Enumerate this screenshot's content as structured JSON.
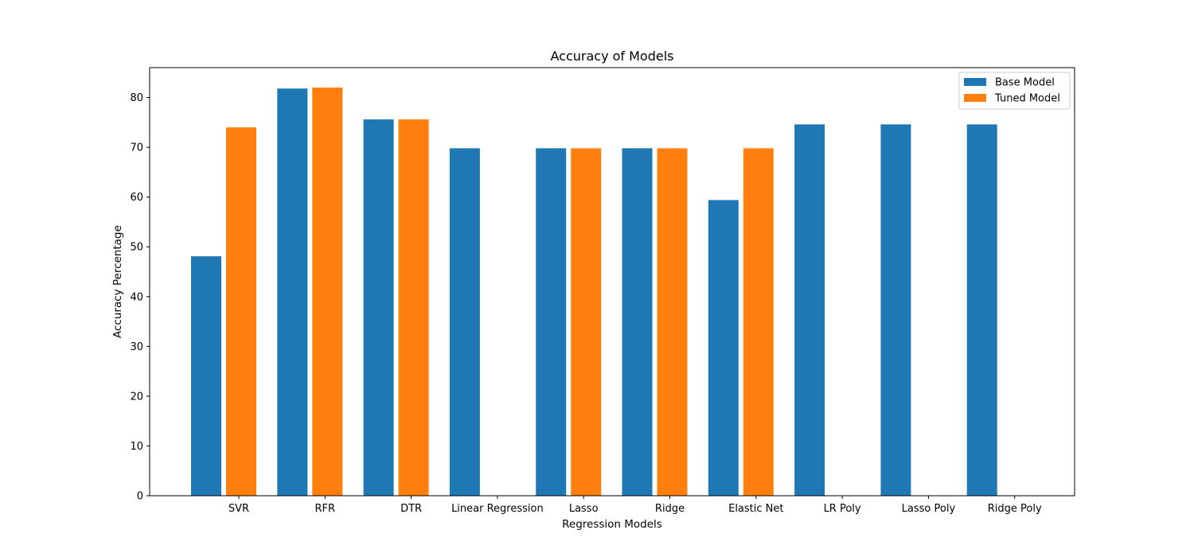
{
  "chart_data": {
    "type": "bar",
    "title": "Accuracy of Models",
    "xlabel": "Regression Models",
    "ylabel": "Accuracy Percentage",
    "ylim": [
      0,
      86
    ],
    "yticks": [
      0,
      10,
      20,
      30,
      40,
      50,
      60,
      70,
      80
    ],
    "grid": false,
    "legend_position": "top-right",
    "categories": [
      "SVR",
      "RFR",
      "DTR",
      "Linear Regression",
      "Lasso",
      "Ridge",
      "Elastic Net",
      "LR Poly",
      "Lasso Poly",
      "Ridge Poly"
    ],
    "series": [
      {
        "name": "Base Model",
        "color": "#1f77b4",
        "values": [
          48.1,
          81.8,
          75.6,
          69.8,
          69.8,
          69.8,
          59.4,
          74.6,
          74.6,
          74.6
        ]
      },
      {
        "name": "Tuned Model",
        "color": "#ff7f0e",
        "values": [
          74.0,
          82.0,
          75.6,
          null,
          69.8,
          69.8,
          69.8,
          null,
          null,
          null
        ]
      }
    ]
  }
}
